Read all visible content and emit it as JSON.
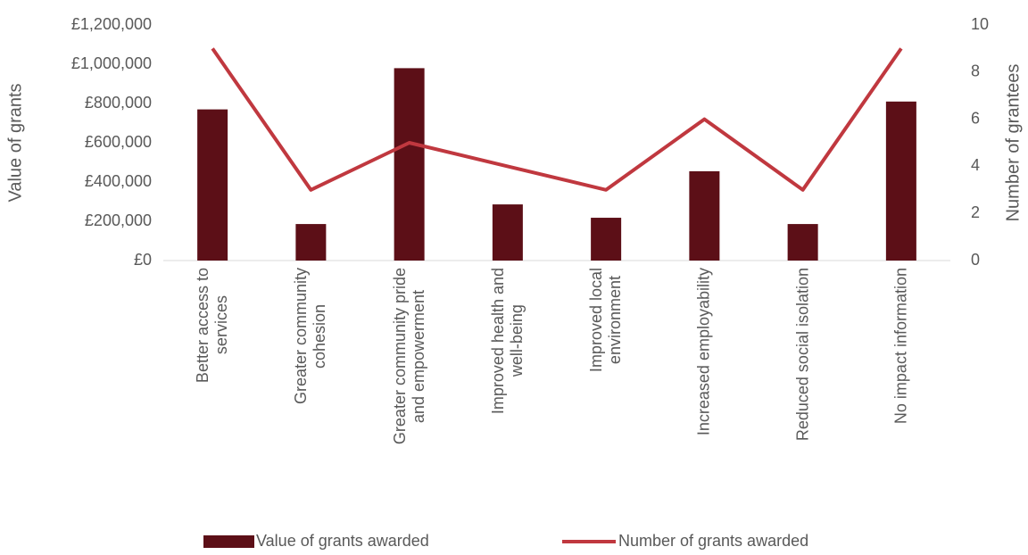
{
  "chart_data": {
    "type": "bar",
    "categories": [
      "Better access to\nservices",
      "Greater community\ncohesion",
      "Greater community pride\nand empowerment",
      "Improved health and\nwell-being",
      "Improved local\nenvironment",
      "Increased employability",
      "Reduced social isolation",
      "No impact information"
    ],
    "series": [
      {
        "name": "Value of grants awarded",
        "type": "bar",
        "color": "#5c0f17",
        "values": [
          770000,
          186000,
          980000,
          286000,
          218000,
          455000,
          186000,
          810000
        ]
      },
      {
        "name": "Number of grants awarded",
        "type": "line",
        "color": "#c0383f",
        "axis": "y2",
        "values": [
          9,
          3,
          5,
          4,
          3,
          6,
          3,
          9
        ]
      }
    ],
    "ylabel": "Value of grants",
    "y2label": "Number of grantees",
    "ylim": [
      0,
      1200000
    ],
    "yticks": [
      {
        "value": 0,
        "label": "£0"
      },
      {
        "value": 200000,
        "label": "£200,000"
      },
      {
        "value": 400000,
        "label": "£400,000"
      },
      {
        "value": 600000,
        "label": "£600,000"
      },
      {
        "value": 800000,
        "label": "£800,000"
      },
      {
        "value": 1000000,
        "label": "£1,000,000"
      },
      {
        "value": 1200000,
        "label": "£1,200,000"
      }
    ],
    "y2lim": [
      0,
      10
    ],
    "y2ticks": [
      0,
      2,
      4,
      6,
      8,
      10
    ],
    "legend": "bottom"
  }
}
